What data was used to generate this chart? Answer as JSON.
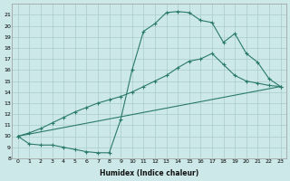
{
  "xlabel": "Humidex (Indice chaleur)",
  "bg_color": "#cce8e8",
  "grid_color": "#aacccc",
  "line_color": "#2a7a6a",
  "xlim": [
    -0.5,
    23.5
  ],
  "ylim": [
    8,
    22
  ],
  "xticks": [
    0,
    1,
    2,
    3,
    4,
    5,
    6,
    7,
    8,
    9,
    10,
    11,
    12,
    13,
    14,
    15,
    16,
    17,
    18,
    19,
    20,
    21,
    22,
    23
  ],
  "yticks": [
    8,
    9,
    10,
    11,
    12,
    13,
    14,
    15,
    16,
    17,
    18,
    19,
    20,
    21
  ],
  "ytick_labels": [
    "8",
    "9",
    "10",
    "11",
    "12",
    "13",
    "14",
    "15",
    "16",
    "17",
    "18",
    "19",
    "20",
    "21"
  ],
  "curve1_x": [
    0,
    1,
    2,
    3,
    4,
    5,
    6,
    7,
    8,
    9,
    10,
    11,
    12,
    13,
    14,
    15,
    16,
    17,
    18,
    19,
    20,
    21,
    22,
    23
  ],
  "curve1_y": [
    10.0,
    9.3,
    9.2,
    9.2,
    9.0,
    8.8,
    8.6,
    8.5,
    8.5,
    11.5,
    16.0,
    19.5,
    20.2,
    21.2,
    21.3,
    21.2,
    20.5,
    20.3,
    18.5,
    19.3,
    17.5,
    16.7,
    15.2,
    14.5
  ],
  "curve2_x": [
    0,
    1,
    2,
    3,
    4,
    5,
    6,
    7,
    8,
    9,
    10,
    11,
    12,
    13,
    14,
    15,
    16,
    17,
    18,
    19,
    20,
    21,
    22,
    23
  ],
  "curve2_y": [
    10.0,
    10.3,
    10.7,
    11.2,
    11.7,
    12.2,
    12.6,
    13.0,
    13.3,
    13.6,
    14.0,
    14.5,
    15.0,
    15.5,
    16.2,
    16.8,
    17.0,
    17.5,
    16.5,
    15.5,
    15.0,
    14.8,
    14.6,
    14.5
  ],
  "curve3_x": [
    0,
    23
  ],
  "curve3_y": [
    10.0,
    14.5
  ]
}
